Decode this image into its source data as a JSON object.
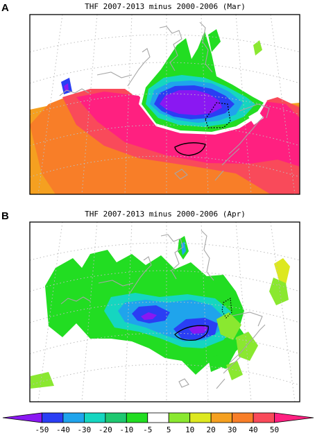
{
  "chart_data": [
    {
      "type": "heatmap",
      "panel_label": "A",
      "title": "THF 2007-2013 minus 2000-2006 (Mar)",
      "grid": true,
      "blobs": [
        {
          "level": 20,
          "color": "#f5a020"
        },
        {
          "level": 30,
          "color": "#f87e28"
        },
        {
          "level": 40,
          "color": "#f94a5a"
        },
        {
          "level": 50,
          "color": "#ff2080"
        },
        {
          "level": -5,
          "color": "#ffffff"
        },
        {
          "level": -10,
          "color": "#22dd22"
        },
        {
          "level": -20,
          "color": "#15d6c0"
        },
        {
          "level": -30,
          "color": "#1fa4ec"
        },
        {
          "level": -40,
          "color": "#2a3ef4"
        },
        {
          "level": -50,
          "color": "#8a18f2"
        }
      ]
    },
    {
      "type": "heatmap",
      "panel_label": "B",
      "title": "THF 2007-2013 minus 2000-2006 (Apr)",
      "grid": true,
      "blobs": [
        {
          "level": -10,
          "color": "#22dd22"
        },
        {
          "level": -20,
          "color": "#15d6c0"
        },
        {
          "level": -30,
          "color": "#1fa4ec"
        },
        {
          "level": -40,
          "color": "#2a3ef4"
        },
        {
          "level": -50,
          "color": "#8a18f2"
        }
      ]
    }
  ],
  "colorbar": {
    "ticks": [
      "-50",
      "-40",
      "-30",
      "-20",
      "-10",
      "-5",
      "5",
      "10",
      "20",
      "30",
      "40",
      "50"
    ],
    "colors": [
      "#8a18f2",
      "#2a3ef4",
      "#1fa4ec",
      "#15d6c0",
      "#1ec870",
      "#22dd22",
      "#ffffff",
      "#8ae830",
      "#dde820",
      "#f5a020",
      "#f87e28",
      "#f94a5a",
      "#ff2080"
    ]
  }
}
